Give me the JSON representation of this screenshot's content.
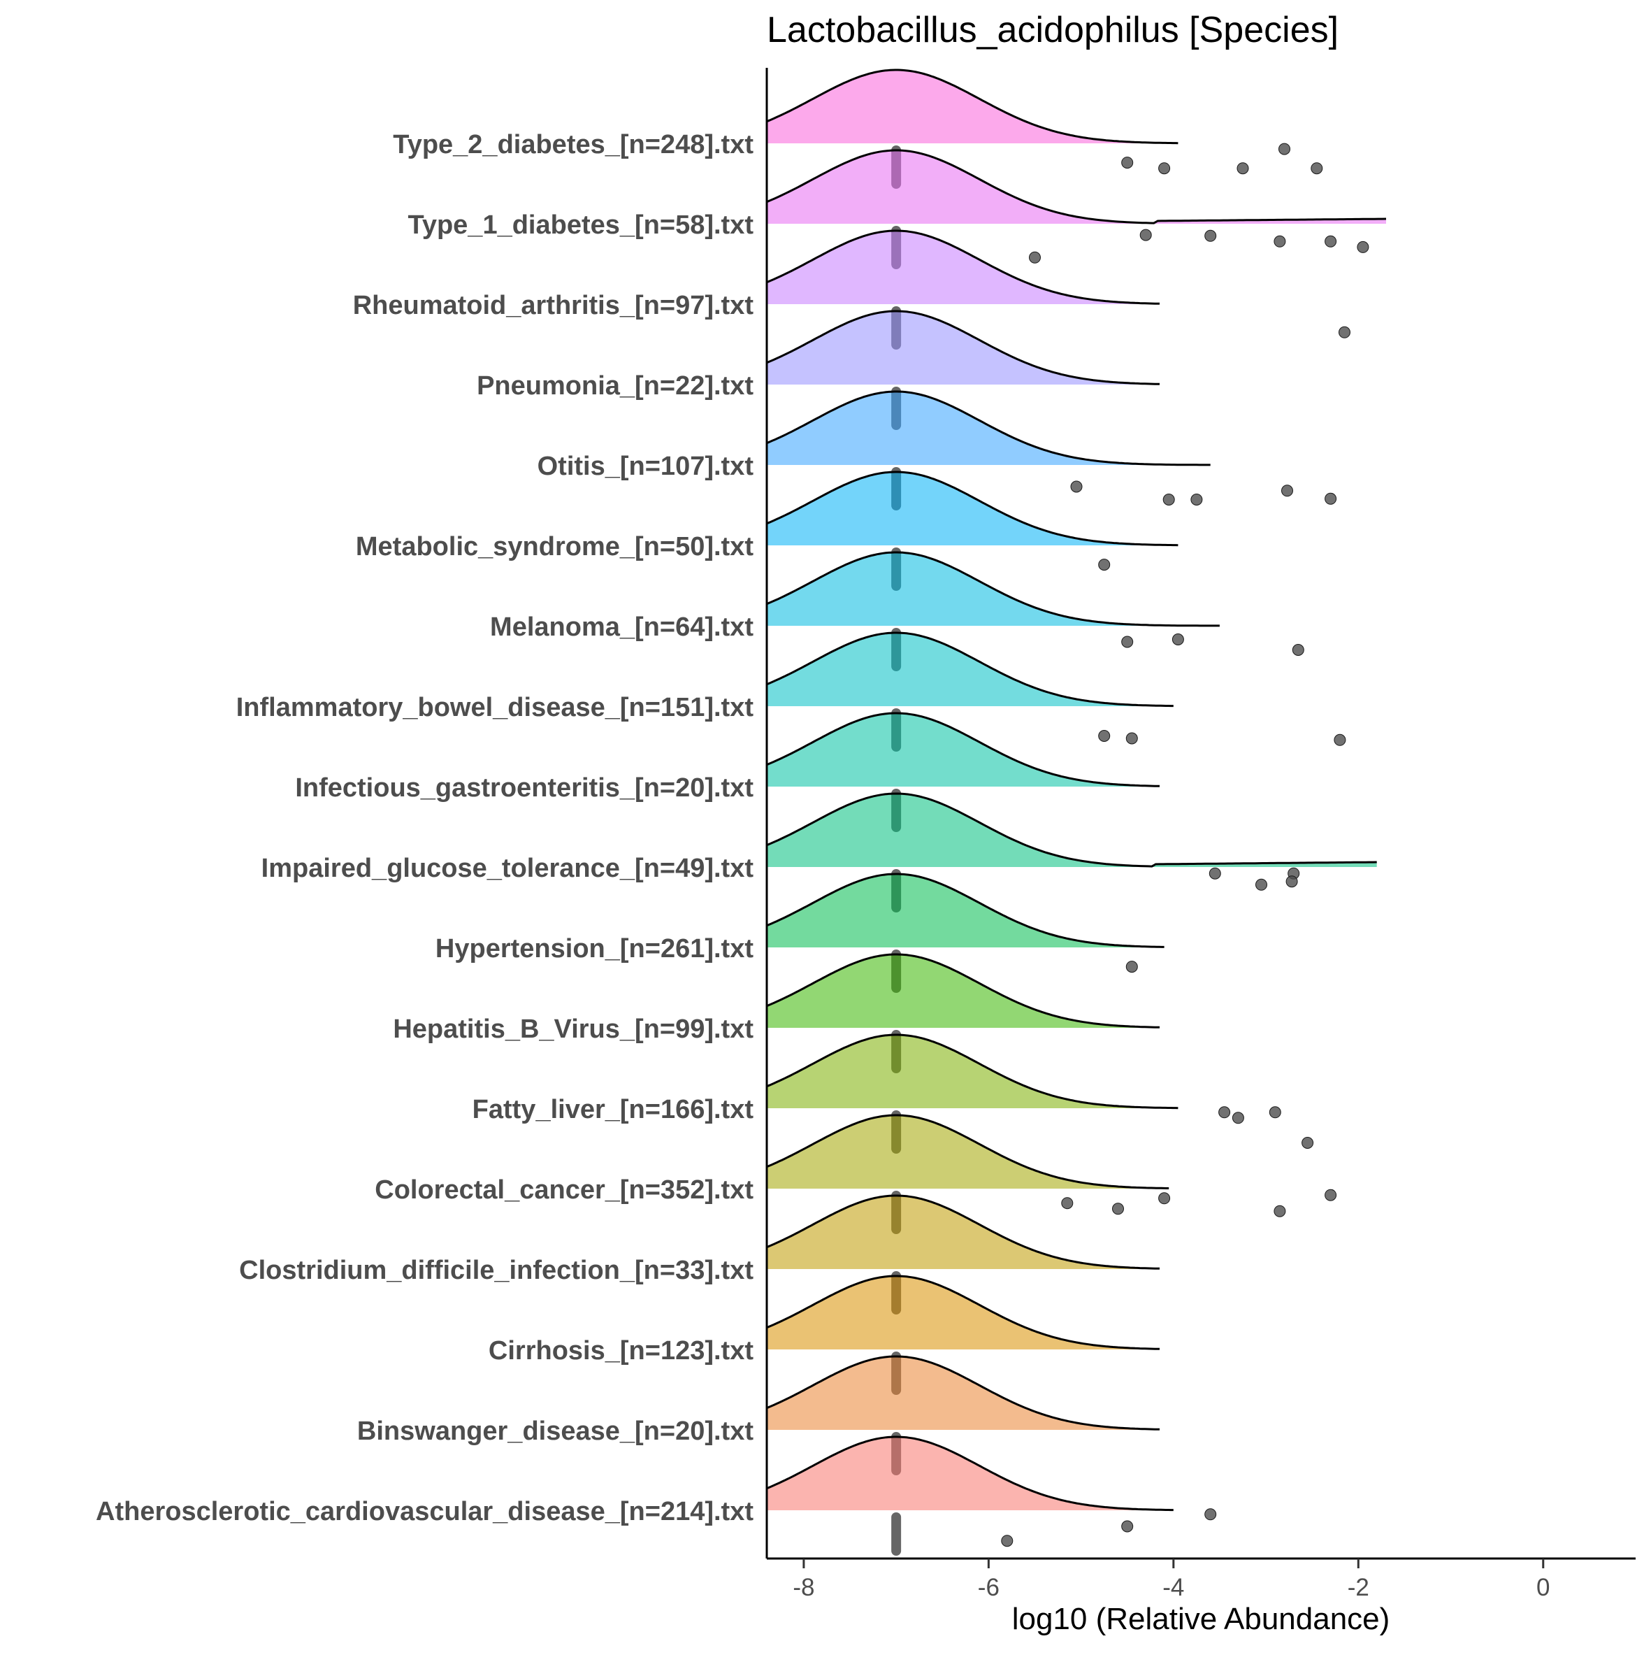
{
  "chart_data": {
    "type": "ridgeline",
    "title": "Lactobacillus_acidophilus [Species]",
    "xlabel": "log10 (Relative Abundance)",
    "ylabel": "",
    "xlim": [
      -8.4,
      1
    ],
    "x_ticks": [
      -8,
      -6,
      -4,
      -2,
      0
    ],
    "x_tick_labels": [
      "-8",
      "-6",
      "-4",
      "-2",
      "0"
    ],
    "legend": "none",
    "grid": false,
    "mode_x": -7.0,
    "categories": [
      "Atherosclerotic_cardiovascular_disease_[n=214].txt",
      "Binswanger_disease_[n=20].txt",
      "Cirrhosis_[n=123].txt",
      "Clostridium_difficile_infection_[n=33].txt",
      "Colorectal_cancer_[n=352].txt",
      "Fatty_liver_[n=166].txt",
      "Hepatitis_B_Virus_[n=99].txt",
      "Hypertension_[n=261].txt",
      "Impaired_glucose_tolerance_[n=49].txt",
      "Infectious_gastroenteritis_[n=20].txt",
      "Inflammatory_bowel_disease_[n=151].txt",
      "Melanoma_[n=64].txt",
      "Metabolic_syndrome_[n=50].txt",
      "Otitis_[n=107].txt",
      "Pneumonia_[n=22].txt",
      "Rheumatoid_arthritis_[n=97].txt",
      "Type_1_diabetes_[n=58].txt",
      "Type_2_diabetes_[n=248].txt"
    ],
    "series": [
      {
        "fill": "#F8766D",
        "tail_end": -4.0,
        "outliers": [
          [
            -5.8,
            -0.38
          ],
          [
            -4.5,
            -0.2
          ],
          [
            -3.6,
            -0.05
          ]
        ]
      },
      {
        "fill": "#EA8331",
        "tail_end": -4.15,
        "outliers": []
      },
      {
        "fill": "#D89000",
        "tail_end": -4.15,
        "outliers": []
      },
      {
        "fill": "#C09B00",
        "tail_end": -4.15,
        "outliers": []
      },
      {
        "fill": "#A3A500",
        "tail_end": -4.05,
        "outliers": [
          [
            -5.15,
            -0.18
          ],
          [
            -4.6,
            -0.25
          ],
          [
            -4.1,
            -0.12
          ],
          [
            -2.85,
            -0.28
          ],
          [
            -2.3,
            -0.08
          ]
        ]
      },
      {
        "fill": "#7CAE00",
        "tail_end": -3.95,
        "outliers": [
          [
            -3.45,
            -0.05
          ],
          [
            -3.3,
            -0.12
          ],
          [
            -2.9,
            -0.05
          ],
          [
            -2.55,
            -0.43
          ]
        ]
      },
      {
        "fill": "#39B600",
        "tail_end": -4.15,
        "outliers": []
      },
      {
        "fill": "#00BB4E",
        "tail_end": -4.1,
        "outliers": [
          [
            -4.45,
            -0.24
          ]
        ]
      },
      {
        "fill": "#00BF7D",
        "tail_end": -1.8,
        "outliers": [
          [
            -3.55,
            -0.08
          ],
          [
            -3.05,
            -0.22
          ],
          [
            -2.7,
            -0.08
          ],
          [
            -2.72,
            -0.18
          ]
        ]
      },
      {
        "fill": "#00C1A3",
        "tail_end": -4.15,
        "outliers": []
      },
      {
        "fill": "#00BFC4",
        "tail_end": -4.0,
        "outliers": [
          [
            -4.75,
            -0.37
          ],
          [
            -4.45,
            -0.4
          ],
          [
            -2.2,
            -0.42
          ]
        ]
      },
      {
        "fill": "#00BAE0",
        "tail_end": -3.5,
        "outliers": [
          [
            -4.5,
            -0.2
          ],
          [
            -3.95,
            -0.17
          ],
          [
            -2.65,
            -0.3
          ]
        ]
      },
      {
        "fill": "#00B0F6",
        "tail_end": -3.95,
        "outliers": [
          [
            -4.75,
            -0.24
          ]
        ]
      },
      {
        "fill": "#35A2FF",
        "tail_end": -3.6,
        "outliers": [
          [
            -5.05,
            -0.27
          ],
          [
            -4.05,
            -0.43
          ],
          [
            -3.75,
            -0.43
          ],
          [
            -2.77,
            -0.32
          ],
          [
            -2.3,
            -0.42
          ]
        ]
      },
      {
        "fill": "#9590FF",
        "tail_end": -4.15,
        "outliers": []
      },
      {
        "fill": "#C77CFF",
        "tail_end": -4.15,
        "outliers": [
          [
            -2.15,
            -0.35
          ]
        ]
      },
      {
        "fill": "#E76BF3",
        "tail_end": -1.7,
        "outliers": [
          [
            -5.5,
            -0.42
          ],
          [
            -4.3,
            -0.14
          ],
          [
            -3.6,
            -0.15
          ],
          [
            -2.85,
            -0.22
          ],
          [
            -2.3,
            -0.22
          ],
          [
            -1.95,
            -0.29
          ]
        ]
      },
      {
        "fill": "#FA62DB",
        "tail_end": -3.95,
        "outliers": [
          [
            -4.5,
            -0.24
          ],
          [
            -4.1,
            -0.31
          ],
          [
            -3.25,
            -0.31
          ],
          [
            -2.8,
            -0.07
          ],
          [
            -2.45,
            -0.31
          ]
        ]
      }
    ]
  }
}
